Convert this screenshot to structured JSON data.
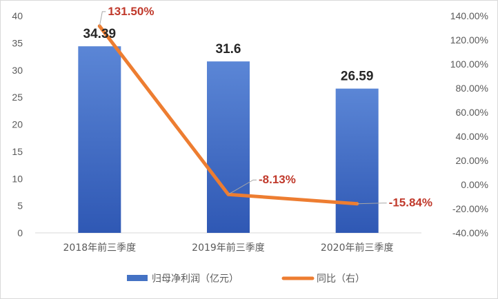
{
  "chart_data": {
    "type": "bar",
    "categories": [
      "2018年前三季度",
      "2019年前三季度",
      "2020年前三季度"
    ],
    "series": [
      {
        "name": "归母净利润（亿元）",
        "type": "bar",
        "axis": "left",
        "values": [
          34.39,
          31.6,
          26.59
        ],
        "labels": [
          "34.39",
          "31.6",
          "26.59"
        ],
        "color": "#4472C4"
      },
      {
        "name": "同比（右）",
        "type": "line",
        "axis": "right",
        "values": [
          131.5,
          -8.13,
          -15.84
        ],
        "labels": [
          "131.50%",
          "-8.13%",
          "-15.84%"
        ],
        "color": "#ED7D31"
      }
    ],
    "left_axis": {
      "ylim": [
        0,
        40
      ],
      "ticks": [
        "0",
        "5",
        "10",
        "15",
        "20",
        "25",
        "30",
        "35",
        "40"
      ]
    },
    "right_axis": {
      "ylim": [
        -40,
        140
      ],
      "ticks": [
        "-40.00%",
        "-20.00%",
        "0.00%",
        "20.00%",
        "40.00%",
        "60.00%",
        "80.00%",
        "100.00%",
        "120.00%",
        "140.00%"
      ]
    },
    "data_label_color_line": "#C0392B",
    "legend_position": "bottom",
    "grid": false
  }
}
